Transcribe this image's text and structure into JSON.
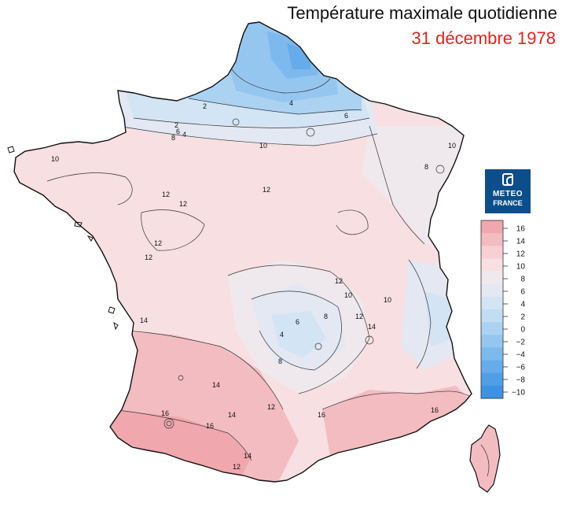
{
  "title": "Température maximale quotidienne",
  "date": "31 décembre 1978",
  "logo": {
    "line1": "METEO",
    "line2": "FRANCE"
  },
  "legend": {
    "ticks": [
      "16",
      "14",
      "12",
      "10",
      "8",
      "6",
      "4",
      "2",
      "0",
      "−2",
      "−4",
      "−6",
      "−8",
      "−10"
    ],
    "colors": [
      "#f0a7ae",
      "#f3bcc1",
      "#f6d0d3",
      "#f8dfe1",
      "#efe9ee",
      "#e3e8f3",
      "#d3e5f5",
      "#c1ddf4",
      "#acd2f2",
      "#95c6ef",
      "#7db9ec",
      "#66acea",
      "#509fe6",
      "#3d93e2"
    ]
  },
  "contour_labels": [
    "2",
    "4",
    "6",
    "2",
    "4",
    "6",
    "8",
    "10",
    "8",
    "10",
    "10",
    "12",
    "12",
    "12",
    "12",
    "12",
    "12",
    "10",
    "8",
    "14",
    "14",
    "16",
    "16",
    "14",
    "12",
    "16",
    "14",
    "12",
    "4",
    "6",
    "8",
    "10",
    "12",
    "14",
    "16"
  ]
}
